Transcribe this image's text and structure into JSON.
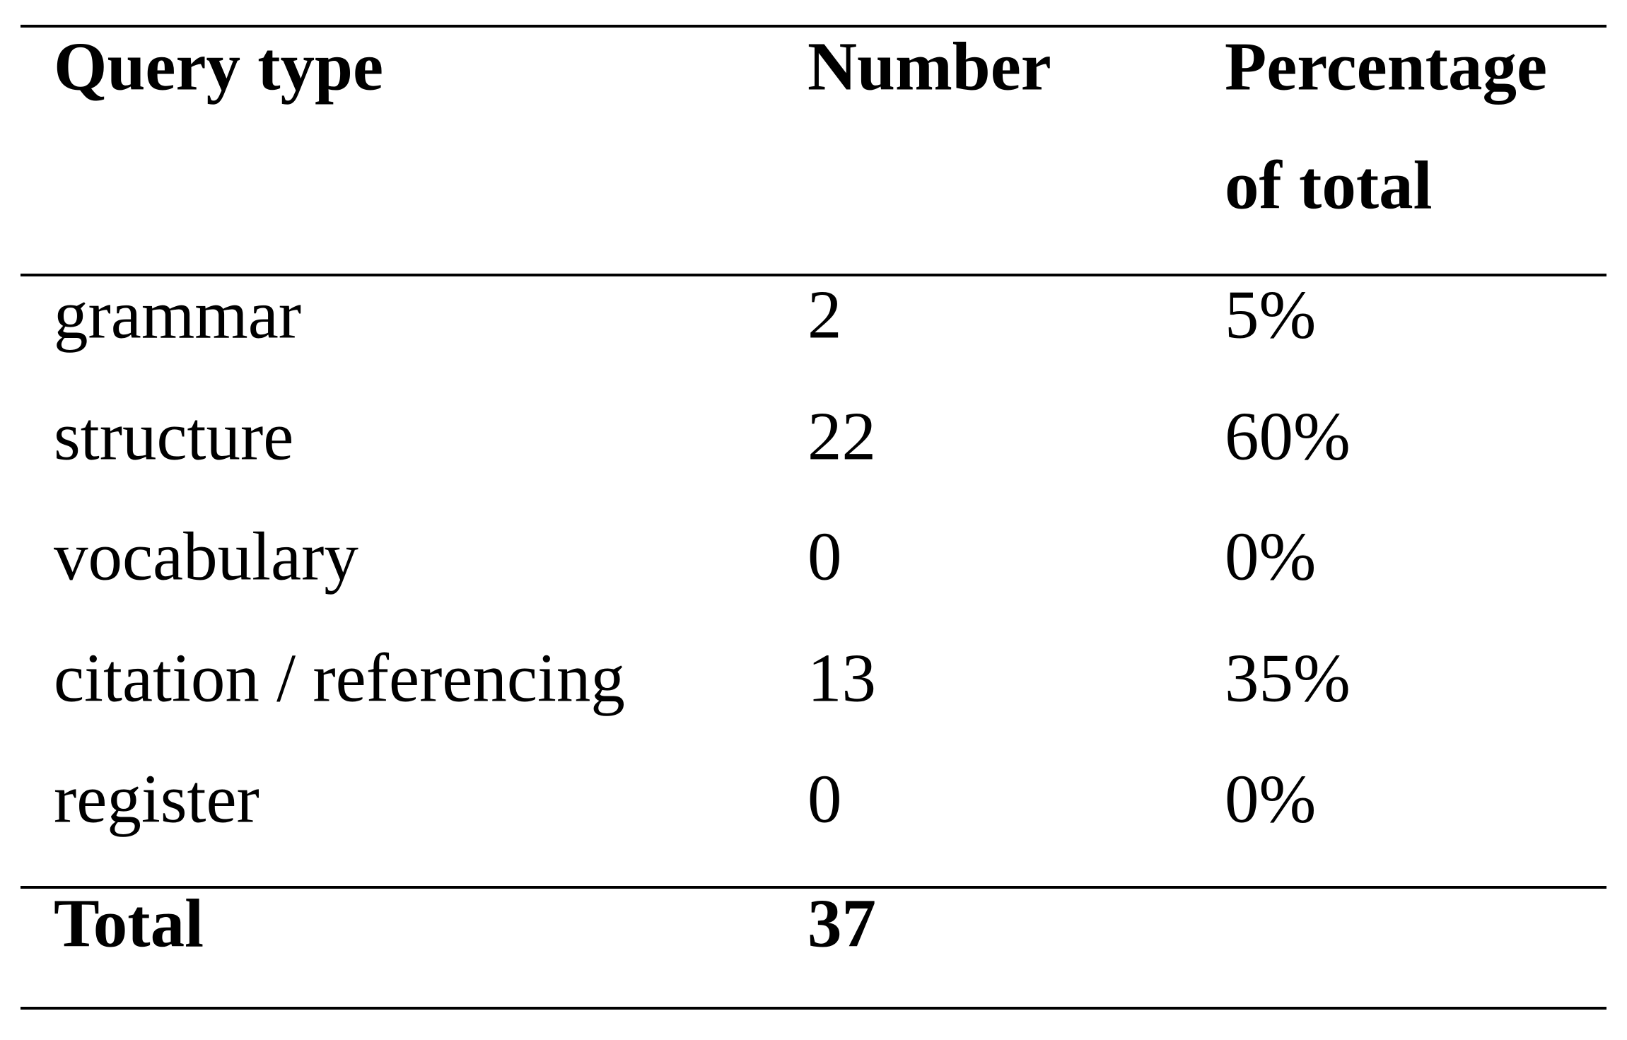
{
  "table": {
    "header": [
      "Query type",
      "Number",
      [
        "Percentage",
        "of total"
      ]
    ],
    "rows": [
      [
        "grammar",
        "2",
        "5%"
      ],
      [
        "structure",
        "22",
        "60%"
      ],
      [
        "vocabulary",
        "0",
        "0%"
      ],
      [
        "citation / referencing",
        "13",
        "35%"
      ],
      [
        "register",
        "0",
        "0%"
      ]
    ],
    "total": [
      "Total",
      "37"
    ]
  }
}
